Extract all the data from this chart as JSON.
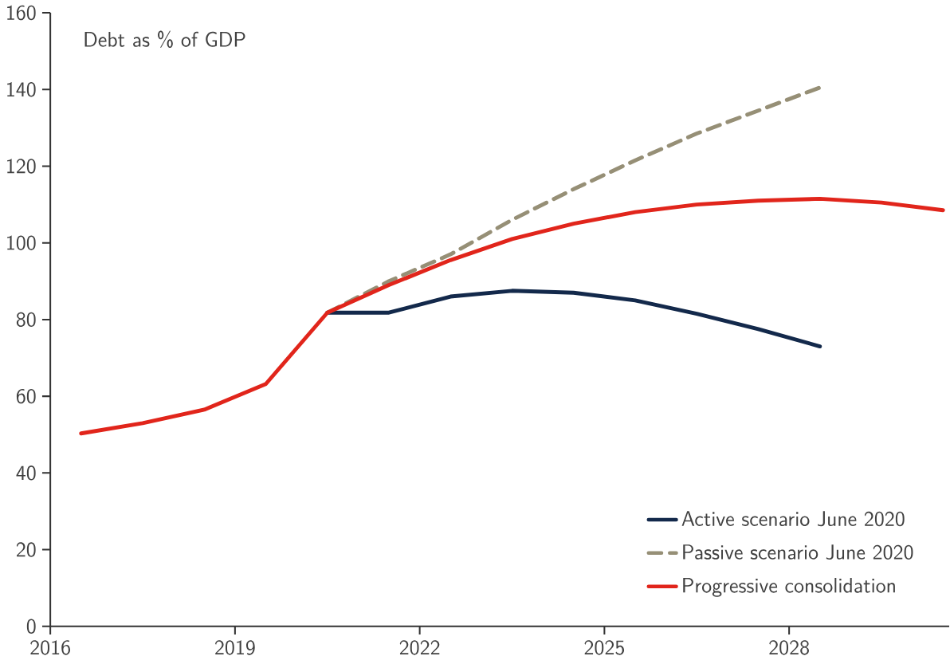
{
  "chart_data": {
    "type": "line",
    "title": "Debt as % of GDP",
    "xlim": [
      2016,
      2030.6
    ],
    "xticks": [
      2016,
      2019,
      2022,
      2025,
      2028
    ],
    "ylim": [
      0,
      160
    ],
    "yticks": [
      0,
      20,
      40,
      60,
      80,
      100,
      120,
      140,
      160
    ],
    "grid": false,
    "legend": "bottom right",
    "marker": "none",
    "series": [
      {
        "name": "Active scenario June 2020",
        "color": "#13294b",
        "x": [
          2020.5,
          2021.5,
          2022.5,
          2023.5,
          2024.5,
          2025.5,
          2026.5,
          2027.5,
          2028.5
        ],
        "values": [
          81.8,
          81.8,
          86,
          87.5,
          87,
          85,
          81.5,
          77.5,
          73
        ]
      },
      {
        "name": "Passive scenario June 2020",
        "color": "#968f76",
        "line_style": "dashed",
        "x": [
          2020.5,
          2021.5,
          2022.5,
          2023.5,
          2024.5,
          2025.5,
          2026.5,
          2027.5,
          2028.5
        ],
        "values": [
          81.8,
          90,
          97,
          106,
          114,
          121.5,
          128.5,
          134.5,
          140.5
        ]
      },
      {
        "name": "Progressive consolidation",
        "color": "#e1251b",
        "x": [
          2016.5,
          2017.5,
          2018.5,
          2019.5,
          2020.5,
          2021.5,
          2022.5,
          2023.5,
          2024.5,
          2025.5,
          2026.5,
          2027.5,
          2028.5,
          2029.5,
          2030.5
        ],
        "values": [
          50.3,
          53,
          56.5,
          63.2,
          81.8,
          89,
          95.5,
          101,
          105,
          108,
          110,
          111,
          111.5,
          110.5,
          108.5
        ]
      }
    ]
  }
}
